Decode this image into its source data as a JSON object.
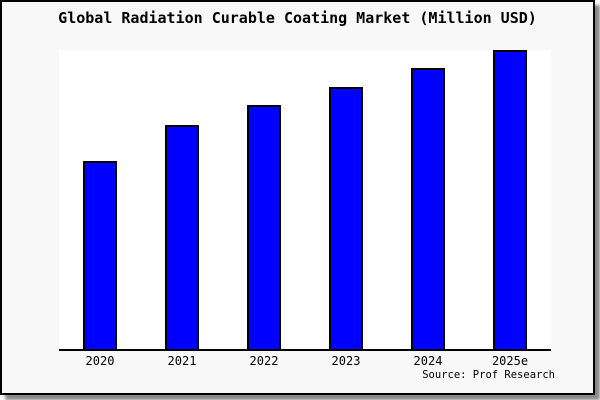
{
  "page": {
    "title": "Global Radiation Curable Coating Market (Million USD)",
    "source_credit": "Source: Prof Research"
  },
  "colors": {
    "bar_fill": "#0000ff",
    "bar_border": "#000000",
    "plot_background": "#ffffff",
    "card_background": "#f8f8f8",
    "frame_border": "#000000",
    "text": "#000000"
  },
  "chart_data": {
    "type": "bar",
    "title": "Global Radiation Curable Coating Market (Million USD)",
    "categories": [
      "2020",
      "2021",
      "2022",
      "2023",
      "2024",
      "2025e"
    ],
    "values": [
      62.8,
      74.8,
      81.7,
      87.7,
      94.0,
      100.0
    ],
    "values_unit": "relative index (no y-axis labels shown; 2025e bar = 100, estimated from bar heights)",
    "xlabel": "",
    "ylabel": "",
    "ylim": [
      0,
      100
    ],
    "grid": false,
    "legend": "none",
    "y_axis_ticks_visible": false,
    "source": "Source: Prof Research"
  }
}
